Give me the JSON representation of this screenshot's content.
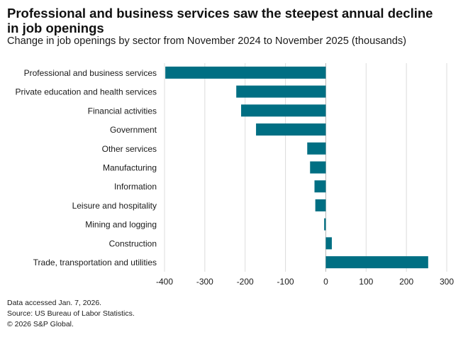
{
  "chart_data": {
    "type": "bar",
    "orientation": "horizontal",
    "title": "Professional and business services saw the steepest annual decline in job openings",
    "subtitle": "Change in job openings by sector from November 2024 to November 2025 (thousands)",
    "xlabel": "",
    "ylabel": "",
    "xlim": [
      -400,
      300
    ],
    "ticks": [
      -400,
      -300,
      -200,
      -100,
      0,
      100,
      200,
      300
    ],
    "grid": true,
    "categories": [
      "Professional and business services",
      "Private education and health services",
      "Financial activities",
      "Government",
      "Other services",
      "Manufacturing",
      "Information",
      "Leisure and hospitality",
      "Mining and logging",
      "Construction",
      "Trade, transportation and utilities"
    ],
    "values": [
      -398,
      -222,
      -210,
      -173,
      -46,
      -39,
      -28,
      -26,
      -4,
      15,
      254
    ],
    "bar_color": "#006f83"
  },
  "footer": {
    "note": "Data accessed Jan. 7, 2026.",
    "source": "Source: US Bureau of Labor Statistics.",
    "copyright": "© 2026 S&P Global."
  }
}
